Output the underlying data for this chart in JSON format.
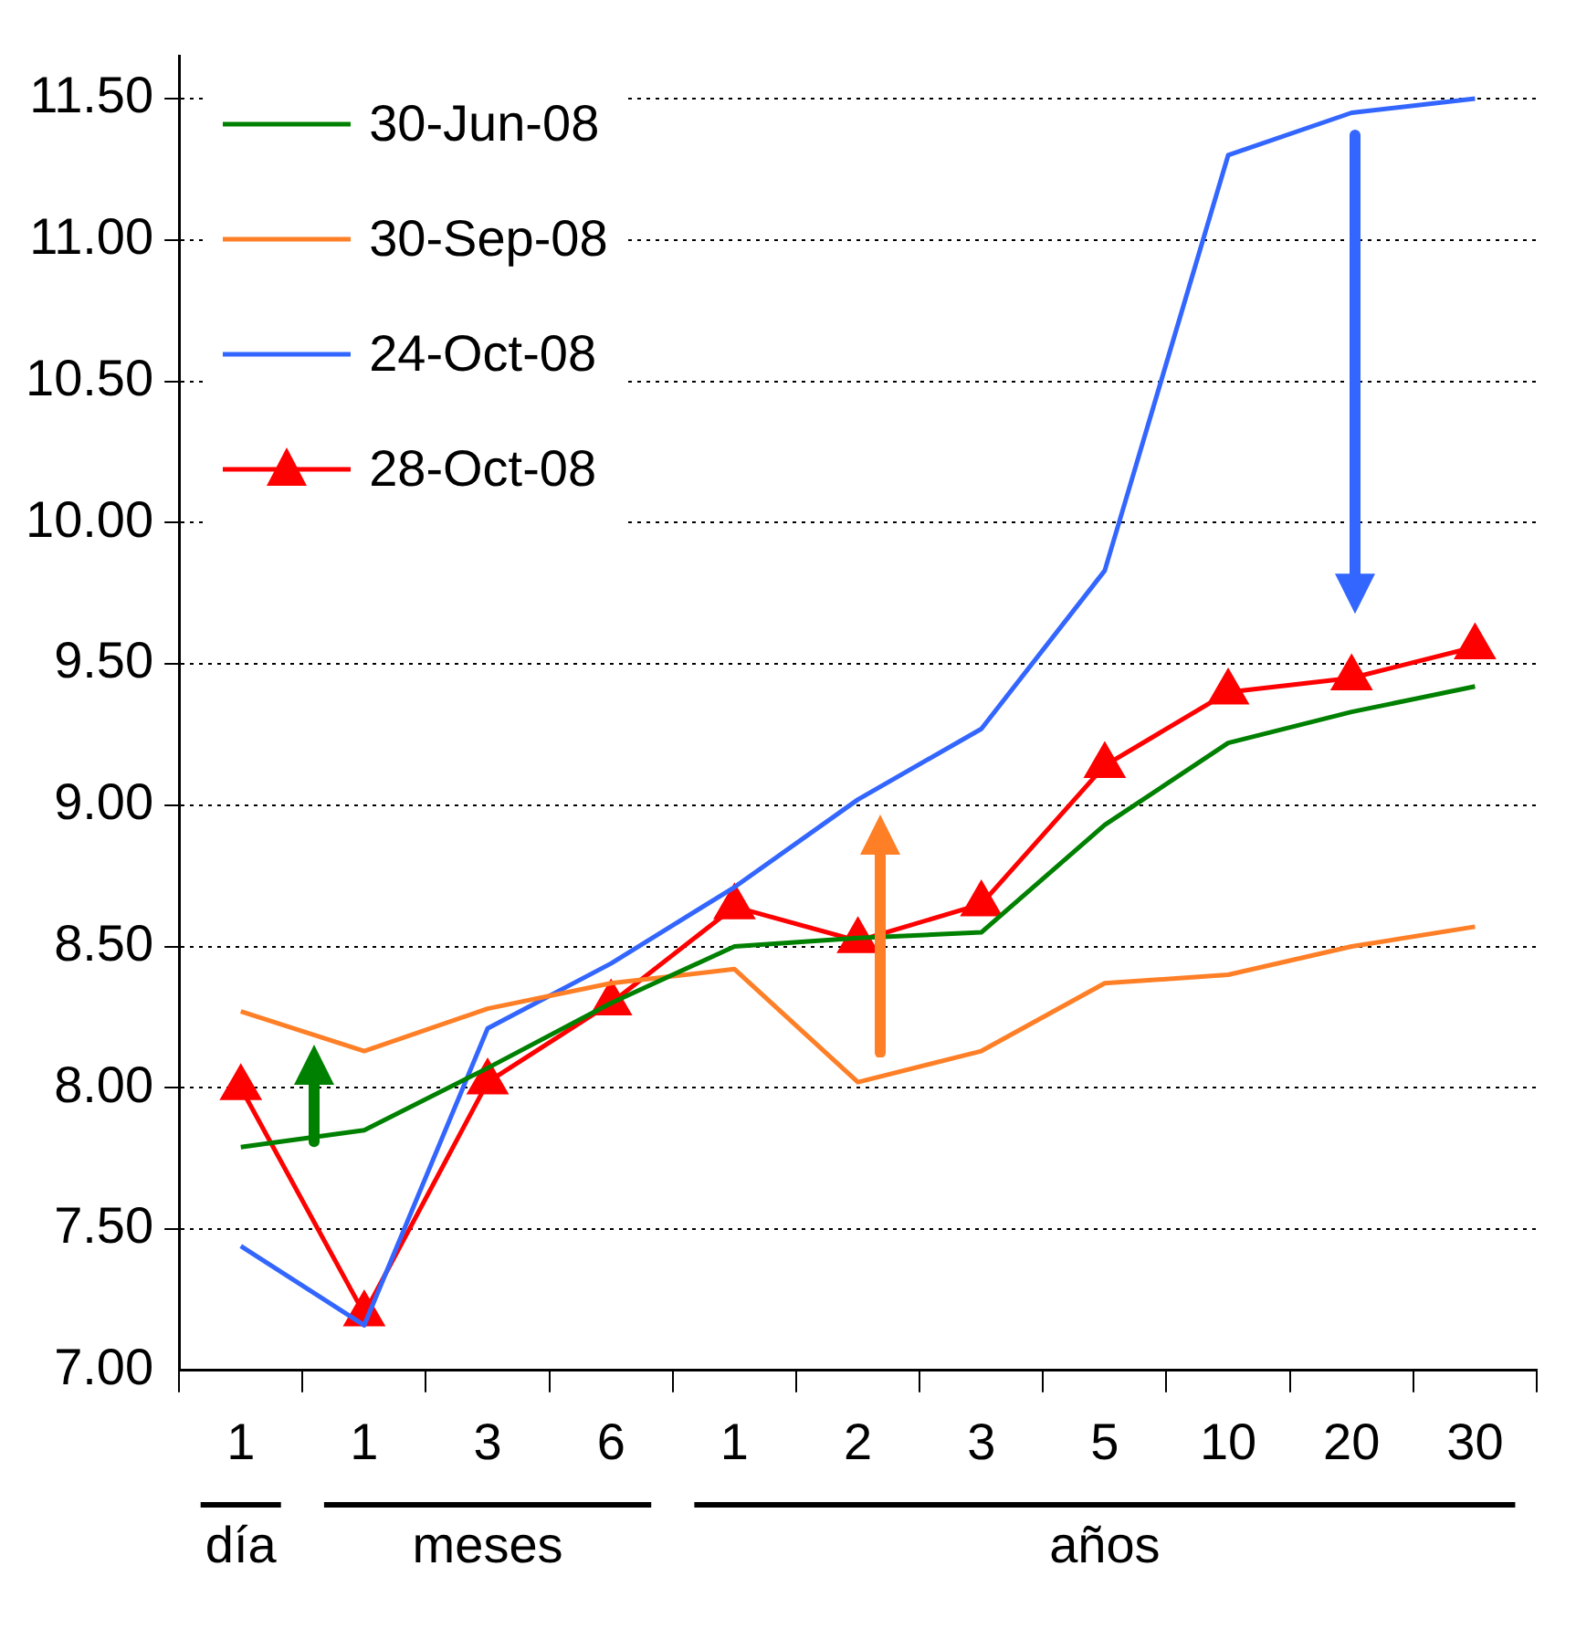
{
  "chart_data": {
    "type": "line",
    "categories": [
      "1",
      "1",
      "3",
      "6",
      "1",
      "2",
      "3",
      "5",
      "10",
      "20",
      "30"
    ],
    "series": [
      {
        "name": "30-Jun-08",
        "color": "#008000",
        "marker": "none",
        "values": [
          7.79,
          7.85,
          8.07,
          8.3,
          8.5,
          8.53,
          8.55,
          8.93,
          9.22,
          9.33,
          9.42
        ]
      },
      {
        "name": "30-Sep-08",
        "color": "#ff7f27",
        "marker": "none",
        "values": [
          8.27,
          8.13,
          8.28,
          8.37,
          8.42,
          8.02,
          8.13,
          8.37,
          8.4,
          8.5,
          8.57
        ]
      },
      {
        "name": "24-Oct-08",
        "color": "#3366ff",
        "marker": "none",
        "values": [
          7.44,
          7.16,
          8.21,
          8.44,
          8.71,
          9.02,
          9.27,
          9.83,
          11.3,
          11.45,
          11.5
        ]
      },
      {
        "name": "28-Oct-08",
        "color": "#ff0000",
        "marker": "triangle",
        "values": [
          8.0,
          7.2,
          8.02,
          8.3,
          8.64,
          8.52,
          8.65,
          9.14,
          9.4,
          9.45,
          9.56
        ]
      }
    ],
    "annotations": [
      "día",
      "meses",
      "años"
    ],
    "ylim": [
      7,
      11.65
    ],
    "yticks": [
      {
        "value": 7,
        "label": "7.00"
      },
      {
        "value": 7.5,
        "label": "7.50"
      },
      {
        "value": 8,
        "label": "8.00"
      },
      {
        "value": 8.5,
        "label": "8.50"
      },
      {
        "value": 9,
        "label": "9.00"
      },
      {
        "value": 9.5,
        "label": "9.50"
      },
      {
        "value": 10,
        "label": "10.00"
      },
      {
        "value": 10.5,
        "label": "10.50"
      },
      {
        "value": 11,
        "label": "11.00"
      },
      {
        "value": 11.5,
        "label": "11.50"
      }
    ],
    "grid": "y",
    "legend": "top left",
    "line_style": "solid"
  }
}
